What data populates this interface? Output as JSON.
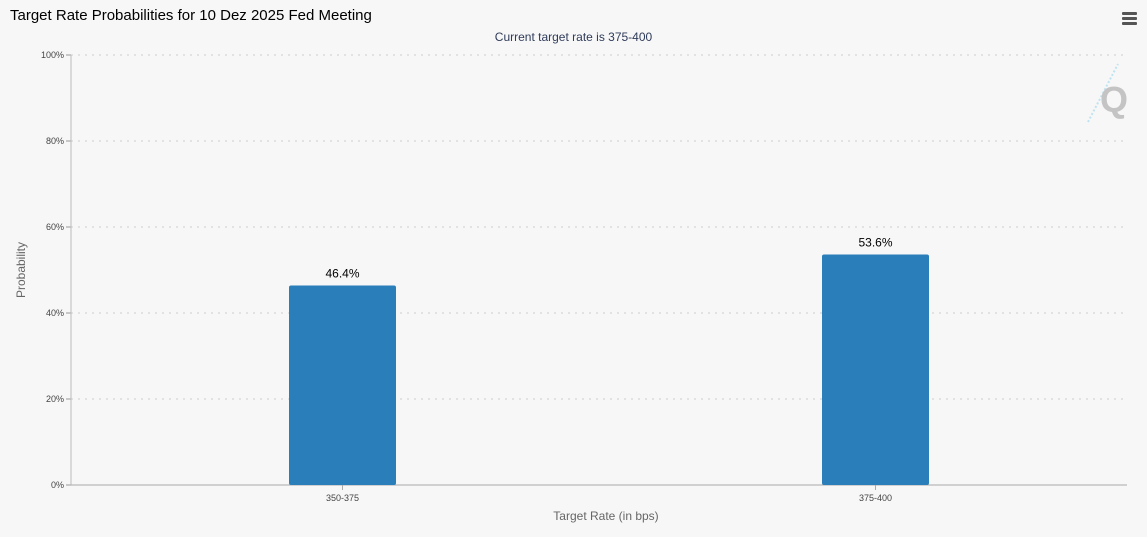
{
  "chart_data": {
    "type": "bar",
    "title": "Target Rate Probabilities for 10 Dez 2025 Fed Meeting",
    "subtitle": "Current target rate is 375-400",
    "categories": [
      "350-375",
      "375-400"
    ],
    "values": [
      46.4,
      53.6
    ],
    "data_labels": [
      "46.4%",
      "53.6%"
    ],
    "xlabel": "Target Rate (in bps)",
    "ylabel": "Probability",
    "ylim": [
      0,
      100
    ],
    "yticks": [
      "0%",
      "20%",
      "40%",
      "60%",
      "80%",
      "100%"
    ],
    "grid": true,
    "color": "#2a7fba"
  },
  "watermark": "Q"
}
